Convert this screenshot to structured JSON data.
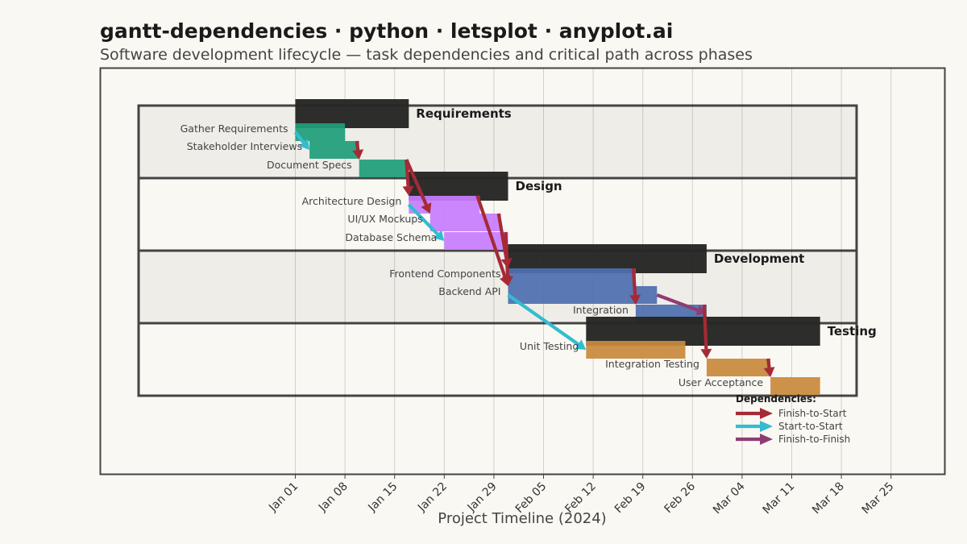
{
  "title": "gantt-dependencies · python · letsplot · anyplot.ai",
  "subtitle": "Software development lifecycle — task dependencies and critical path across phases",
  "colors": {
    "background": "#faf8f2",
    "phase_bar": "#262624",
    "requirements": "#1f9e7a",
    "design": "#c77dff",
    "development": "#4f6fae",
    "testing": "#c98a3d",
    "finish_to_start": "#a52a36",
    "start_to_start": "#33bccf",
    "finish_to_finish": "#8e3d72"
  },
  "chart_data": {
    "type": "gantt",
    "xlabel": "Project Timeline (2024)",
    "xlim": [
      "2023-12-20",
      "2024-03-31"
    ],
    "x_ticks": [
      {
        "date": "2024-01-01",
        "label": "Jan 01"
      },
      {
        "date": "2024-01-08",
        "label": "Jan 08"
      },
      {
        "date": "2024-01-15",
        "label": "Jan 15"
      },
      {
        "date": "2024-01-22",
        "label": "Jan 22"
      },
      {
        "date": "2024-01-29",
        "label": "Jan 29"
      },
      {
        "date": "2024-02-05",
        "label": "Feb 05"
      },
      {
        "date": "2024-02-12",
        "label": "Feb 12"
      },
      {
        "date": "2024-02-19",
        "label": "Feb 19"
      },
      {
        "date": "2024-02-26",
        "label": "Feb 26"
      },
      {
        "date": "2024-03-04",
        "label": "Mar 04"
      },
      {
        "date": "2024-03-11",
        "label": "Mar 11"
      },
      {
        "date": "2024-03-18",
        "label": "Mar 18"
      },
      {
        "date": "2024-03-25",
        "label": "Mar 25"
      }
    ],
    "phases": [
      {
        "name": "Requirements",
        "start": "2024-01-01",
        "end": "2024-01-17",
        "color_key": "requirements",
        "tasks": [
          {
            "name": "Gather Requirements",
            "start": "2024-01-01",
            "end": "2024-01-08"
          },
          {
            "name": "Stakeholder Interviews",
            "start": "2024-01-03",
            "end": "2024-01-10"
          },
          {
            "name": "Document Specs",
            "start": "2024-01-10",
            "end": "2024-01-17"
          }
        ]
      },
      {
        "name": "Design",
        "start": "2024-01-17",
        "end": "2024-01-31",
        "color_key": "design",
        "tasks": [
          {
            "name": "Architecture Design",
            "start": "2024-01-17",
            "end": "2024-01-27"
          },
          {
            "name": "UI/UX Mockups",
            "start": "2024-01-20",
            "end": "2024-01-30"
          },
          {
            "name": "Database Schema",
            "start": "2024-01-22",
            "end": "2024-01-31"
          }
        ]
      },
      {
        "name": "Development",
        "start": "2024-01-31",
        "end": "2024-02-28",
        "color_key": "development",
        "tasks": [
          {
            "name": "Frontend Components",
            "start": "2024-01-31",
            "end": "2024-02-18"
          },
          {
            "name": "Backend API",
            "start": "2024-01-31",
            "end": "2024-02-21"
          },
          {
            "name": "Integration",
            "start": "2024-02-18",
            "end": "2024-02-28"
          }
        ]
      },
      {
        "name": "Testing",
        "start": "2024-02-11",
        "end": "2024-03-15",
        "color_key": "testing",
        "tasks": [
          {
            "name": "Unit Testing",
            "start": "2024-02-11",
            "end": "2024-02-25"
          },
          {
            "name": "Integration Testing",
            "start": "2024-02-28",
            "end": "2024-03-08"
          },
          {
            "name": "User Acceptance",
            "start": "2024-03-08",
            "end": "2024-03-15"
          }
        ]
      }
    ],
    "dependencies": [
      {
        "from": "Gather Requirements",
        "to": "Stakeholder Interviews",
        "type": "start_to_start"
      },
      {
        "from": "Stakeholder Interviews",
        "to": "Document Specs",
        "type": "finish_to_start"
      },
      {
        "from": "Document Specs",
        "to": "Architecture Design",
        "type": "finish_to_start"
      },
      {
        "from": "Document Specs",
        "to": "UI/UX Mockups",
        "type": "finish_to_start"
      },
      {
        "from": "Architecture Design",
        "to": "Database Schema",
        "type": "start_to_start"
      },
      {
        "from": "Architecture Design",
        "to": "Backend API",
        "type": "finish_to_start"
      },
      {
        "from": "UI/UX Mockups",
        "to": "Frontend Components",
        "type": "finish_to_start"
      },
      {
        "from": "Database Schema",
        "to": "Backend API",
        "type": "finish_to_start"
      },
      {
        "from": "Backend API",
        "to": "Unit Testing",
        "type": "start_to_start"
      },
      {
        "from": "Frontend Components",
        "to": "Integration",
        "type": "finish_to_start"
      },
      {
        "from": "Backend API",
        "to": "Integration",
        "type": "finish_to_finish"
      },
      {
        "from": "Integration",
        "to": "Integration Testing",
        "type": "finish_to_start"
      },
      {
        "from": "Integration Testing",
        "to": "User Acceptance",
        "type": "finish_to_start"
      }
    ],
    "legend": {
      "title": "Dependencies:",
      "position": "bottom-right",
      "entries": [
        {
          "label": "Finish-to-Start",
          "type": "finish_to_start"
        },
        {
          "label": "Start-to-Start",
          "type": "start_to_start"
        },
        {
          "label": "Finish-to-Finish",
          "type": "finish_to_finish"
        }
      ]
    },
    "grid": true
  }
}
